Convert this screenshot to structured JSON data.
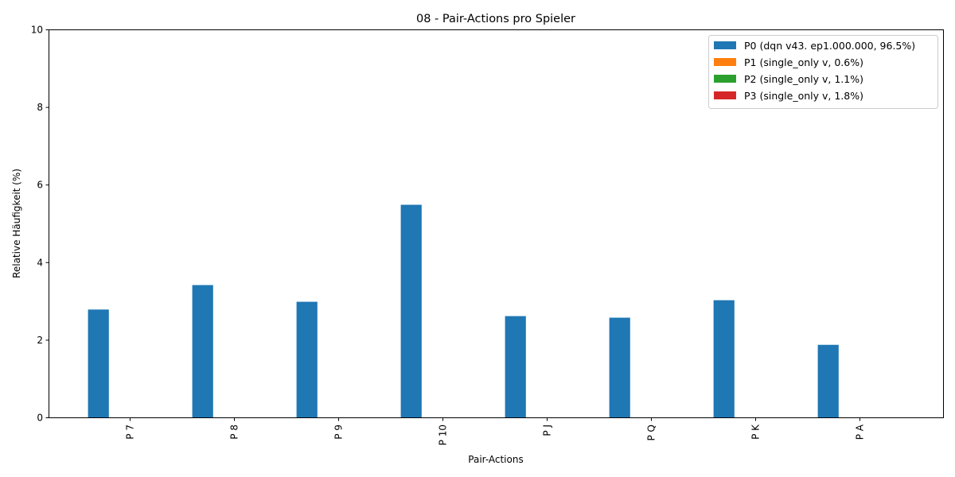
{
  "chart_data": {
    "type": "bar",
    "title": "08 - Pair-Actions pro Spieler",
    "xlabel": "Pair-Actions",
    "ylabel": "Relative Häufigkeit (%)",
    "ylim": [
      0,
      10
    ],
    "yticks": [
      "0",
      "2",
      "4",
      "6",
      "8",
      "10"
    ],
    "grid": false,
    "legend_position": "top-right",
    "categories": [
      "P 7",
      "P 8",
      "P 9",
      "P 10",
      "P J",
      "P Q",
      "P K",
      "P A"
    ],
    "series": [
      {
        "name": "P0 (dqn v43. ep1.000.000, 96.5%)",
        "color": "#1f77b4",
        "values": [
          2.78,
          3.41,
          2.98,
          5.48,
          2.61,
          2.57,
          3.02,
          1.87
        ]
      },
      {
        "name": "P1 (single_only v, 0.6%)",
        "color": "#ff7f0e",
        "values": [
          0,
          0,
          0,
          0,
          0,
          0,
          0,
          0
        ]
      },
      {
        "name": "P2 (single_only v, 1.1%)",
        "color": "#2ca02c",
        "values": [
          0,
          0,
          0,
          0,
          0,
          0,
          0,
          0
        ]
      },
      {
        "name": "P3 (single_only v, 1.8%)",
        "color": "#d62728",
        "values": [
          0,
          0,
          0,
          0,
          0,
          0,
          0,
          0
        ]
      }
    ]
  }
}
